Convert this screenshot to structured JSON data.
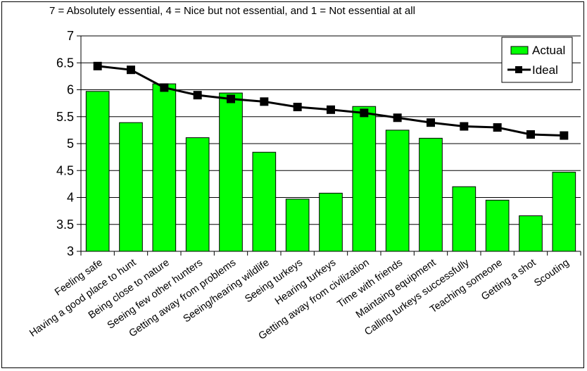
{
  "chart_data": {
    "type": "bar",
    "title": "",
    "subtitle": "7 = Absolutely essential, 4 = Nice but not essential, and 1 = Not essential at all",
    "xlabel": "",
    "ylabel": "",
    "ylim": [
      3,
      7
    ],
    "yticks": [
      "3",
      "3.5",
      "4",
      "4.5",
      "5",
      "5.5",
      "6",
      "6.5",
      "7"
    ],
    "grid": true,
    "legend_position": "top-right",
    "categories": [
      "Feeling safe",
      "Having a good place to hunt",
      "Being close to nature",
      "Seeing few other hunters",
      "Getting away from problems",
      "Seeing/hearing wildlife",
      "Seeing turkeys",
      "Hearing turkeys",
      "Getting away from civilization",
      "Time with friends",
      "Maintaing equipment",
      "Calling turkeys successfully",
      "Teaching someone",
      "Getting a shot",
      "Scouting"
    ],
    "series": [
      {
        "name": "Actual",
        "type": "bar",
        "color": "#00ff00",
        "values": [
          5.97,
          5.39,
          6.11,
          5.11,
          5.94,
          4.84,
          3.97,
          4.08,
          5.69,
          5.25,
          5.1,
          4.2,
          3.95,
          3.66,
          4.47
        ]
      },
      {
        "name": "Ideal",
        "type": "line",
        "color": "#000000",
        "values": [
          6.44,
          6.37,
          6.04,
          5.9,
          5.83,
          5.78,
          5.68,
          5.63,
          5.57,
          5.48,
          5.39,
          5.32,
          5.3,
          5.17,
          5.15
        ]
      }
    ]
  }
}
